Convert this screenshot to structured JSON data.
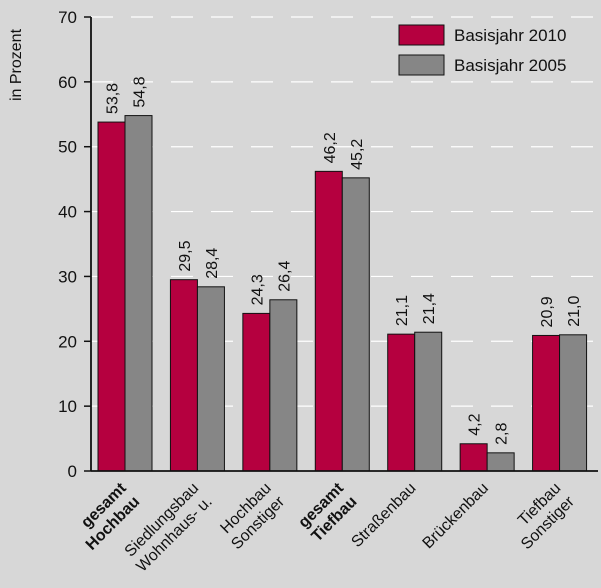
{
  "chart_data": {
    "type": "bar",
    "ylabel": "in Prozent",
    "ylim": [
      0,
      70
    ],
    "yticks": [
      0,
      10,
      20,
      30,
      40,
      50,
      60,
      70
    ],
    "grid": "dashed horizontal",
    "legend_position": "top-right",
    "categories": [
      {
        "lines": [
          "Hochbau",
          "gesamt"
        ],
        "bold": true
      },
      {
        "lines": [
          "Wohnhaus- u.",
          "Siedlungsbau"
        ],
        "bold": false
      },
      {
        "lines": [
          "Sonstiger",
          "Hochbau"
        ],
        "bold": false
      },
      {
        "lines": [
          "Tiefbau",
          "gesamt"
        ],
        "bold": true
      },
      {
        "lines": [
          "Straßenbau"
        ],
        "bold": false
      },
      {
        "lines": [
          "Brückenbau"
        ],
        "bold": false
      },
      {
        "lines": [
          "Sonstiger",
          "Tiefbau"
        ],
        "bold": false
      }
    ],
    "series": [
      {
        "name": "Basisjahr 2010",
        "color": "#b5003f",
        "values": [
          53.8,
          29.5,
          24.3,
          46.2,
          21.1,
          4.2,
          20.9
        ],
        "labels": [
          "53,8",
          "29,5",
          "24,3",
          "46,2",
          "21,1",
          "4,2",
          "20,9"
        ]
      },
      {
        "name": "Basisjahr 2005",
        "color": "#868686",
        "values": [
          54.8,
          28.4,
          26.4,
          45.2,
          21.4,
          2.8,
          21.0
        ],
        "labels": [
          "54,8",
          "28,4",
          "26,4",
          "45,2",
          "21,4",
          "2,8",
          "21,0"
        ]
      }
    ]
  }
}
